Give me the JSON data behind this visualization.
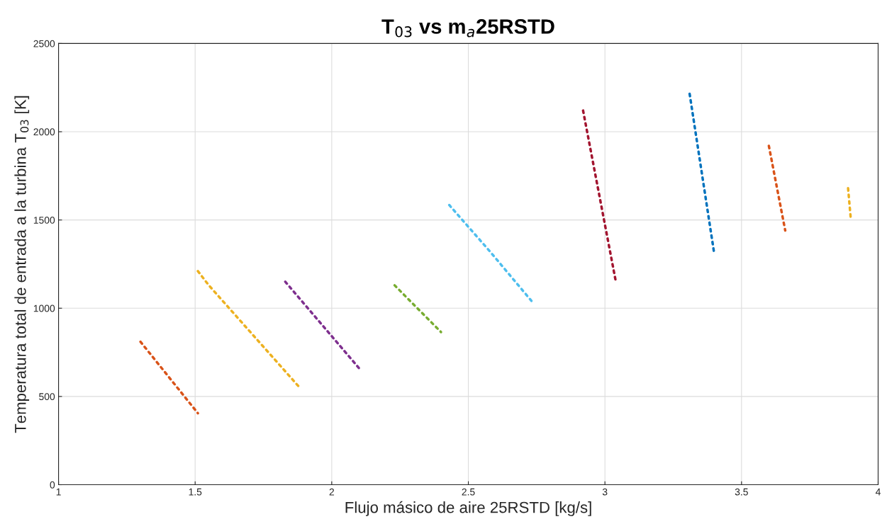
{
  "chart_data": {
    "type": "line",
    "title": "T$_{03}$ vs m$_{a}$25RSTD",
    "xlabel": "Flujo másico de aire 25RSTD [kg/s]",
    "ylabel": "Temperatura total de entrada a la turbina T$_{03}$ [K]",
    "xlim": [
      1,
      4
    ],
    "ylim": [
      0,
      2500
    ],
    "xticks": [
      1,
      1.5,
      2,
      2.5,
      3,
      3.5,
      4
    ],
    "yticks": [
      0,
      500,
      1000,
      1500,
      2000,
      2500
    ],
    "grid": true,
    "line_style": "dotted",
    "marker": "none",
    "series": [
      {
        "color": "#d95319",
        "x": [
          1.3,
          1.51
        ],
        "values": [
          810,
          405
        ]
      },
      {
        "color": "#edb120",
        "x": [
          1.51,
          1.55,
          1.88
        ],
        "values": [
          1210,
          1130,
          555
        ]
      },
      {
        "color": "#7e2f8e",
        "x": [
          1.83,
          2.1
        ],
        "values": [
          1150,
          660
        ]
      },
      {
        "color": "#77ac30",
        "x": [
          2.23,
          2.4
        ],
        "values": [
          1130,
          865
        ]
      },
      {
        "color": "#4dbeee",
        "x": [
          2.43,
          2.58,
          2.74
        ],
        "values": [
          1585,
          1320,
          1025
        ]
      },
      {
        "color": "#a2142f",
        "x": [
          2.92,
          3.04
        ],
        "values": [
          2120,
          1150
        ]
      },
      {
        "color": "#0072bd",
        "x": [
          3.31,
          3.4
        ],
        "values": [
          2215,
          1310
        ]
      },
      {
        "color": "#d95319",
        "x": [
          3.6,
          3.66
        ],
        "values": [
          1920,
          1440
        ]
      },
      {
        "color": "#edb120",
        "x": [
          3.89,
          3.9
        ],
        "values": [
          1680,
          1505
        ]
      }
    ]
  }
}
